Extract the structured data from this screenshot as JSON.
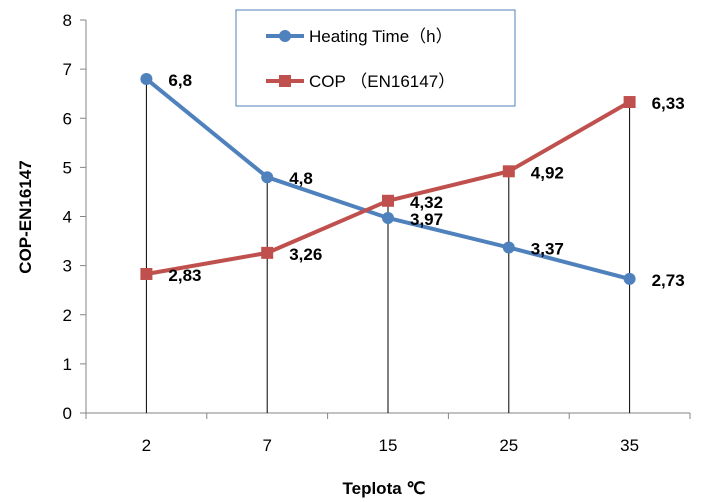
{
  "chart_data": {
    "type": "line",
    "categories": [
      "2",
      "7",
      "15",
      "25",
      "35"
    ],
    "series": [
      {
        "name": "Heating Time（h）",
        "values": [
          6.8,
          4.8,
          3.97,
          3.37,
          2.73
        ],
        "labels": [
          "6,8",
          "4,8",
          "3,97",
          "3,37",
          "2,73"
        ],
        "color": "#4F81BD",
        "marker": "circle"
      },
      {
        "name": "COP （EN16147）",
        "values": [
          2.83,
          3.26,
          4.32,
          4.92,
          6.33
        ],
        "labels": [
          "2,83",
          "3,26",
          "4,32",
          "4,92",
          "6,33"
        ],
        "color": "#C0504D",
        "marker": "square"
      }
    ],
    "xlabel": "Teplota ℃",
    "ylabel": "COP-EN16147",
    "ylim": [
      0,
      8
    ],
    "yticks": [
      "0",
      "1",
      "2",
      "3",
      "4",
      "5",
      "6",
      "7",
      "8"
    ],
    "drop_lines": true,
    "grid": false,
    "legend_position": "top-center"
  }
}
